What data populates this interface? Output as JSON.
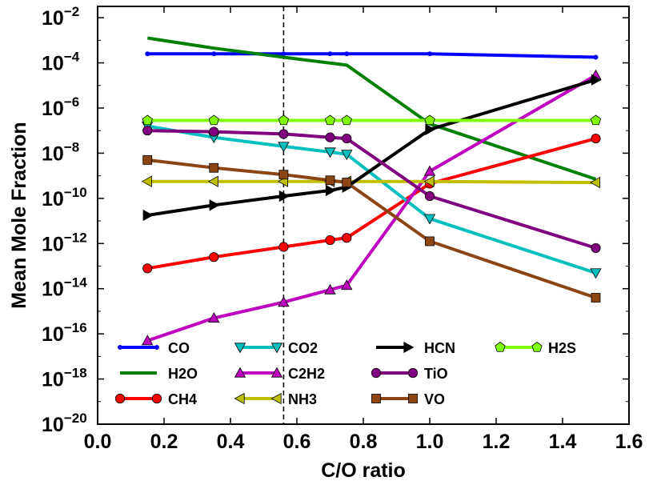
{
  "chart_data": {
    "type": "line",
    "xlabel": "C/O ratio",
    "ylabel": "Mean Mole Fraction",
    "xlim": [
      0.0,
      1.6
    ],
    "ylim_log10": [
      -20,
      -1.5
    ],
    "x_ticks": [
      0.0,
      0.2,
      0.4,
      0.6,
      0.8,
      1.0,
      1.2,
      1.4,
      1.6
    ],
    "x_tick_labels": [
      "0.0",
      "0.2",
      "0.4",
      "0.6",
      "0.8",
      "1.0",
      "1.2",
      "1.4",
      "1.6"
    ],
    "y_tick_exponents": [
      -20,
      -18,
      -16,
      -14,
      -12,
      -10,
      -8,
      -6,
      -4,
      -2
    ],
    "y_tick_base": "10",
    "y_tick_exponent_labels": [
      "−20",
      "−18",
      "−16",
      "−14",
      "−12",
      "−10",
      "−8",
      "−6",
      "−4",
      "−2"
    ],
    "vline_x": 0.56,
    "legend_location": "lower-left",
    "series": [
      {
        "name": "CO",
        "color": "#0000ff",
        "marker": "point",
        "log10_values": [
          [
            0.15,
            -3.6
          ],
          [
            0.35,
            -3.6
          ],
          [
            0.56,
            -3.6
          ],
          [
            0.7,
            -3.6
          ],
          [
            0.75,
            -3.6
          ],
          [
            1.0,
            -3.6
          ],
          [
            1.5,
            -3.75
          ]
        ]
      },
      {
        "name": "H2O",
        "color": "#008000",
        "marker": "none",
        "log10_values": [
          [
            0.15,
            -2.9
          ],
          [
            0.35,
            -3.35
          ],
          [
            0.56,
            -3.75
          ],
          [
            0.75,
            -4.1
          ],
          [
            1.0,
            -6.7
          ],
          [
            1.5,
            -9.15
          ]
        ]
      },
      {
        "name": "CH4",
        "color": "#ff0000",
        "marker": "circle",
        "log10_values": [
          [
            0.15,
            -13.1
          ],
          [
            0.35,
            -12.6
          ],
          [
            0.56,
            -12.15
          ],
          [
            0.7,
            -11.85
          ],
          [
            0.75,
            -11.75
          ],
          [
            1.0,
            -9.35
          ],
          [
            1.5,
            -7.35
          ]
        ]
      },
      {
        "name": "CO2",
        "color": "#00bfbf",
        "marker": "triangle-down",
        "log10_values": [
          [
            0.15,
            -6.8
          ],
          [
            0.35,
            -7.3
          ],
          [
            0.56,
            -7.7
          ],
          [
            0.7,
            -7.95
          ],
          [
            0.75,
            -8.05
          ],
          [
            1.0,
            -10.9
          ],
          [
            1.5,
            -13.3
          ]
        ]
      },
      {
        "name": "C2H2",
        "color": "#bf00bf",
        "marker": "triangle-up",
        "log10_values": [
          [
            0.15,
            -16.3
          ],
          [
            0.35,
            -15.3
          ],
          [
            0.56,
            -14.6
          ],
          [
            0.7,
            -14.05
          ],
          [
            0.75,
            -13.85
          ],
          [
            1.0,
            -8.8
          ],
          [
            1.5,
            -4.55
          ]
        ]
      },
      {
        "name": "NH3",
        "color": "#bfbf00",
        "marker": "triangle-left",
        "log10_values": [
          [
            0.15,
            -9.25
          ],
          [
            0.35,
            -9.25
          ],
          [
            0.56,
            -9.25
          ],
          [
            0.7,
            -9.25
          ],
          [
            0.75,
            -9.25
          ],
          [
            1.0,
            -9.25
          ],
          [
            1.5,
            -9.3
          ]
        ]
      },
      {
        "name": "HCN",
        "color": "#000000",
        "marker": "triangle-right",
        "log10_values": [
          [
            0.15,
            -10.75
          ],
          [
            0.35,
            -10.3
          ],
          [
            0.56,
            -9.9
          ],
          [
            0.7,
            -9.65
          ],
          [
            0.75,
            -9.5
          ],
          [
            1.0,
            -6.95
          ],
          [
            1.5,
            -4.75
          ]
        ]
      },
      {
        "name": "TiO",
        "color": "#800080",
        "marker": "circle",
        "log10_values": [
          [
            0.15,
            -7.0
          ],
          [
            0.35,
            -7.05
          ],
          [
            0.56,
            -7.15
          ],
          [
            0.7,
            -7.3
          ],
          [
            0.75,
            -7.35
          ],
          [
            1.0,
            -9.9
          ],
          [
            1.5,
            -12.2
          ]
        ]
      },
      {
        "name": "VO",
        "color": "#8b4513",
        "marker": "square",
        "log10_values": [
          [
            0.15,
            -8.3
          ],
          [
            0.35,
            -8.65
          ],
          [
            0.56,
            -8.95
          ],
          [
            0.7,
            -9.2
          ],
          [
            0.75,
            -9.3
          ],
          [
            1.0,
            -11.9
          ],
          [
            1.5,
            -14.4
          ]
        ]
      },
      {
        "name": "H2S",
        "color": "#80ff00",
        "marker": "pentagon",
        "log10_values": [
          [
            0.15,
            -6.55
          ],
          [
            0.35,
            -6.55
          ],
          [
            0.56,
            -6.55
          ],
          [
            0.7,
            -6.55
          ],
          [
            0.75,
            -6.55
          ],
          [
            1.0,
            -6.55
          ],
          [
            1.5,
            -6.55
          ]
        ]
      }
    ]
  }
}
